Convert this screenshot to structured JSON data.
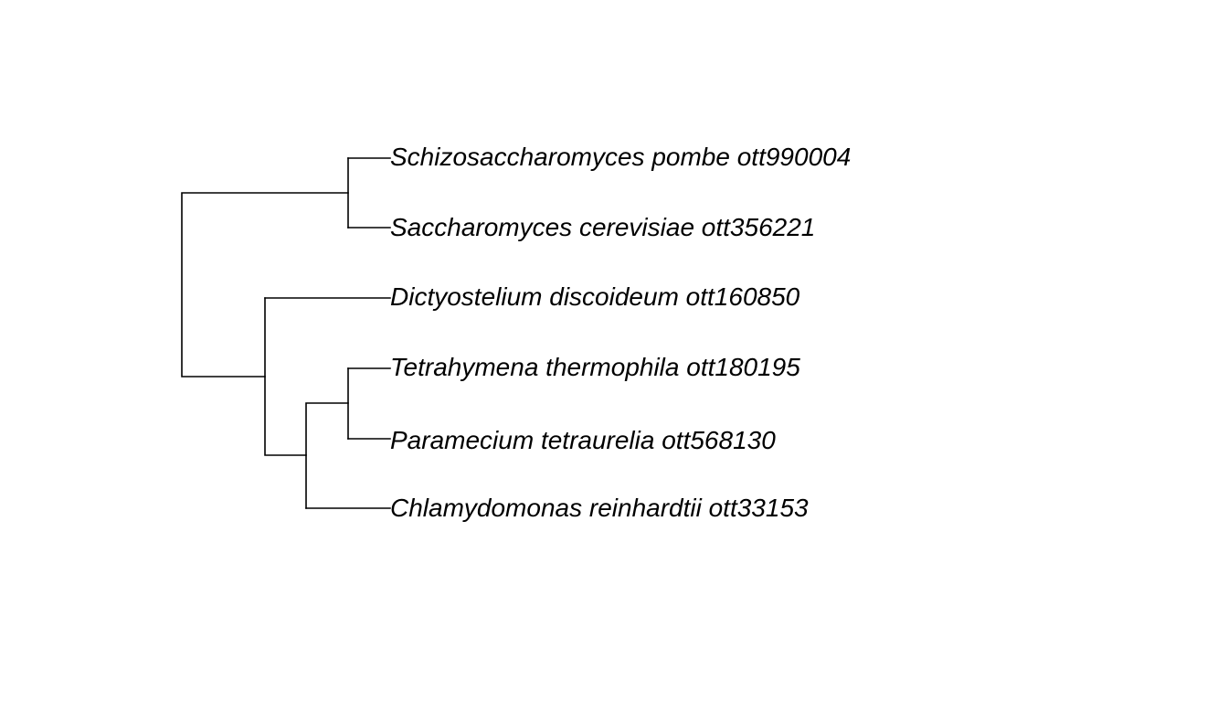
{
  "tree": {
    "tips": [
      {
        "label": "Schizosaccharomyces pombe ott990004"
      },
      {
        "label": "Saccharomyces cerevisiae ott356221"
      },
      {
        "label": "Dictyostelium discoideum ott160850"
      },
      {
        "label": "Tetrahymena thermophila ott180195"
      },
      {
        "label": "Paramecium tetraurelia ott568130"
      },
      {
        "label": "Chlamydomonas reinhardtii ott33153"
      }
    ],
    "newick": "((Schizosaccharomyces pombe ott990004,Saccharomyces cerevisiae ott356221),(Dictyostelium discoideum ott160850,((Tetrahymena thermophila ott180195,Paramecium tetraurelia ott568130),Chlamydomonas reinhardtii ott33153)));"
  }
}
